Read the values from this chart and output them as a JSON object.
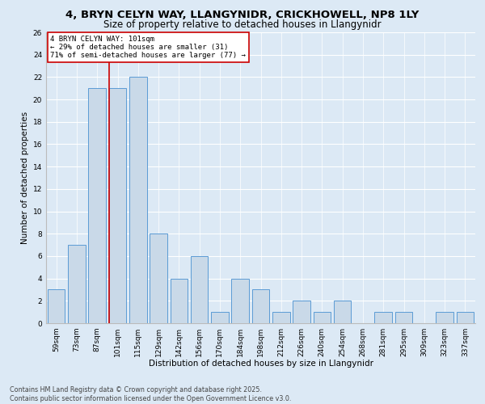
{
  "title1": "4, BRYN CELYN WAY, LLANGYNIDR, CRICKHOWELL, NP8 1LY",
  "title2": "Size of property relative to detached houses in Llangynidr",
  "xlabel": "Distribution of detached houses by size in Llangynidr",
  "ylabel": "Number of detached properties",
  "categories": [
    "59sqm",
    "73sqm",
    "87sqm",
    "101sqm",
    "115sqm",
    "129sqm",
    "142sqm",
    "156sqm",
    "170sqm",
    "184sqm",
    "198sqm",
    "212sqm",
    "226sqm",
    "240sqm",
    "254sqm",
    "268sqm",
    "281sqm",
    "295sqm",
    "309sqm",
    "323sqm",
    "337sqm"
  ],
  "values": [
    3,
    7,
    21,
    21,
    22,
    8,
    4,
    6,
    1,
    4,
    3,
    1,
    2,
    1,
    2,
    0,
    1,
    1,
    0,
    1,
    1
  ],
  "bar_color": "#c9d9e8",
  "bar_edge_color": "#5b9bd5",
  "vline_color": "#cc0000",
  "vline_index": 3,
  "annotation_text": "4 BRYN CELYN WAY: 101sqm\n← 29% of detached houses are smaller (31)\n71% of semi-detached houses are larger (77) →",
  "annotation_box_edgecolor": "#cc0000",
  "ylim": [
    0,
    26
  ],
  "yticks": [
    0,
    2,
    4,
    6,
    8,
    10,
    12,
    14,
    16,
    18,
    20,
    22,
    24,
    26
  ],
  "bg_color": "#dce9f5",
  "footer": "Contains HM Land Registry data © Crown copyright and database right 2025.\nContains public sector information licensed under the Open Government Licence v3.0.",
  "title1_fontsize": 9.5,
  "title2_fontsize": 8.5,
  "axis_label_fontsize": 7.5,
  "tick_fontsize": 6.5,
  "annotation_fontsize": 6.5,
  "footer_fontsize": 5.8
}
